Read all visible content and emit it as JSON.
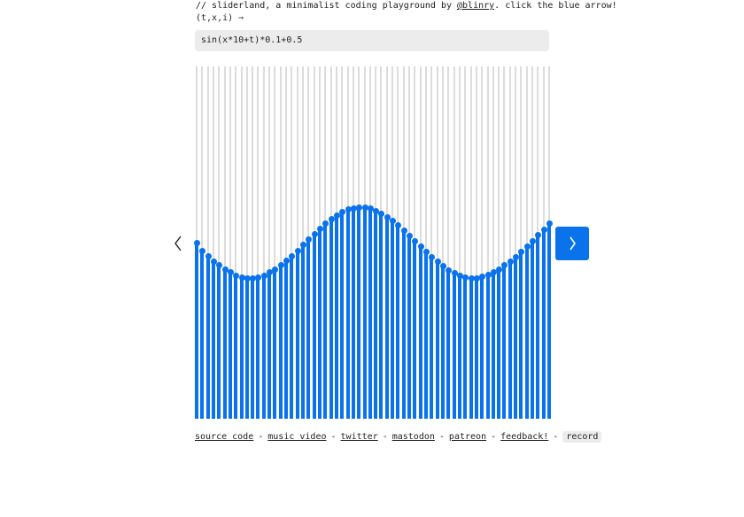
{
  "intro": {
    "prefix": "// sliderland, a minimalist coding playground by ",
    "author": "@blinry",
    "suffix": ". click the blue arrow!"
  },
  "params": "(t,x,i) ⇒",
  "expression": "sin(x*10+t)*0.1+0.5",
  "sliders": {
    "count": 64,
    "values": [
      0.5,
      0.478,
      0.463,
      0.448,
      0.436,
      0.425,
      0.416,
      0.408,
      0.403,
      0.4,
      0.4,
      0.403,
      0.408,
      0.416,
      0.425,
      0.437,
      0.449,
      0.463,
      0.478,
      0.494,
      0.51,
      0.526,
      0.541,
      0.556,
      0.569,
      0.579,
      0.589,
      0.595,
      0.599,
      0.6,
      0.6,
      0.597,
      0.591,
      0.583,
      0.574,
      0.563,
      0.55,
      0.536,
      0.521,
      0.505,
      0.489,
      0.474,
      0.459,
      0.446,
      0.434,
      0.423,
      0.414,
      0.406,
      0.402,
      0.4,
      0.4,
      0.404,
      0.409,
      0.416,
      0.425,
      0.436,
      0.447,
      0.46,
      0.475,
      0.49,
      0.506,
      0.522,
      0.537,
      0.555
    ],
    "fill_color": "#0a73eb",
    "track_color": "#dcdcdc"
  },
  "nav": {
    "prev_icon": "chevron-left-icon",
    "next_icon": "chevron-right-icon",
    "accent": "#0a73eb"
  },
  "footer": {
    "links": [
      "source code",
      "music video",
      "twitter",
      "mastodon",
      "patreon",
      "feedback!"
    ],
    "separator": "-",
    "record_label": "record"
  }
}
